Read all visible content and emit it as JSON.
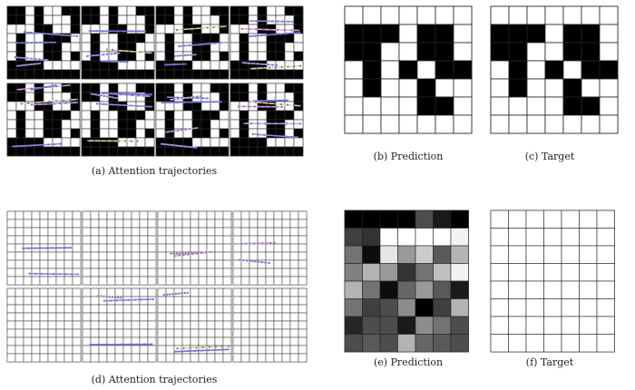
{
  "captions": {
    "a": "(a) Attention trajectories",
    "b": "(b) Prediction",
    "c": "(c) Target",
    "d": "(d) Attention trajectories",
    "e": "(e) Prediction",
    "f": "(f) Target"
  },
  "colors": {
    "cell_on": "#000000",
    "cell_off": "#ffffff",
    "grid_line": "#333333",
    "trajectory_palette": [
      "#f1d97a",
      "#f2a7c0",
      "#c9a6e6",
      "#8e8ee0",
      "#6f74d6"
    ]
  },
  "maze_pattern": [
    "11010011",
    "11010001",
    "00011001",
    "01001110",
    "01001100",
    "01001101",
    "11110000",
    "11111111"
  ],
  "binary_grid": [
    "0000000",
    "1110110",
    "1100110",
    "0101011",
    "0100100",
    "0000110",
    "0000000"
  ],
  "grayscale_prediction": [
    [
      0.0,
      0.0,
      0.0,
      0.0,
      0.3,
      0.1,
      0.0
    ],
    [
      0.25,
      0.2,
      1.0,
      1.0,
      1.0,
      1.0,
      0.95
    ],
    [
      0.45,
      0.05,
      0.9,
      0.6,
      0.8,
      0.35,
      0.7
    ],
    [
      0.5,
      0.7,
      0.6,
      0.2,
      0.45,
      0.75,
      0.95
    ],
    [
      0.7,
      0.45,
      0.05,
      0.4,
      0.6,
      0.35,
      0.1
    ],
    [
      0.45,
      0.25,
      0.3,
      0.55,
      0.0,
      0.25,
      0.7
    ],
    [
      0.15,
      0.3,
      0.3,
      0.1,
      0.55,
      0.45,
      0.3
    ],
    [
      0.3,
      0.35,
      0.3,
      0.7,
      0.4,
      0.35,
      0.3
    ]
  ]
}
